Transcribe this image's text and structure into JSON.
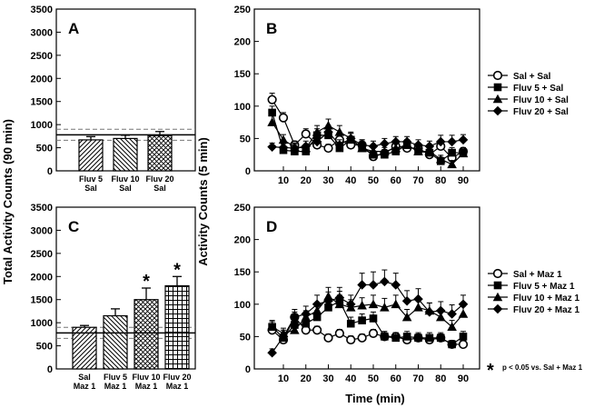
{
  "figure": {
    "left_ylabel": "Total Activity Counts (90 min)",
    "right_ylabel": "Activity Counts (5 min)",
    "xlabel": "Time (min)",
    "footnote_star": "*",
    "footnote": "p < 0.05 vs. Sal + Maz 1"
  },
  "chart_data": [
    {
      "panel": "A",
      "type": "bar",
      "ylim": [
        0,
        3500
      ],
      "yticks": [
        0,
        500,
        1000,
        1500,
        2000,
        2500,
        3000,
        3500
      ],
      "categories": [
        [
          "Fluv 5",
          "Sal"
        ],
        [
          "Fluv 10",
          "Sal"
        ],
        [
          "Fluv 20",
          "Sal"
        ]
      ],
      "values": [
        670,
        700,
        760
      ],
      "errors": [
        70,
        70,
        90
      ],
      "patterns": [
        "diag-up",
        "diag-down",
        "crosshatch"
      ],
      "significant": [
        false,
        false,
        false
      ],
      "reference": {
        "mean": 780,
        "upper": 900,
        "lower": 660
      }
    },
    {
      "panel": "C",
      "type": "bar",
      "ylim": [
        0,
        3500
      ],
      "yticks": [
        0,
        500,
        1000,
        1500,
        2000,
        2500,
        3000,
        3500
      ],
      "categories": [
        [
          "Sal",
          "Maz 1"
        ],
        [
          "Fluv 5",
          "Maz 1"
        ],
        [
          "Fluv 10",
          "Maz 1"
        ],
        [
          "Fluv 20",
          "Maz 1"
        ]
      ],
      "values": [
        900,
        1150,
        1500,
        1800
      ],
      "errors": [
        40,
        150,
        250,
        200
      ],
      "patterns": [
        "diag-up",
        "diag-down",
        "crosshatch",
        "grid"
      ],
      "significant": [
        false,
        false,
        true,
        true
      ],
      "reference": {
        "mean": 780,
        "upper": 900,
        "lower": 660
      }
    },
    {
      "panel": "B",
      "type": "line",
      "ylim": [
        0,
        250
      ],
      "yticks": [
        0,
        50,
        100,
        150,
        200,
        250
      ],
      "xticks": [
        10,
        20,
        30,
        40,
        50,
        60,
        70,
        80,
        90
      ],
      "x": [
        5,
        10,
        15,
        20,
        25,
        30,
        35,
        40,
        45,
        50,
        55,
        60,
        65,
        70,
        75,
        80,
        85,
        90
      ],
      "series": [
        {
          "name": "Sal + Sal",
          "marker": "circle-open",
          "values": [
            110,
            82,
            40,
            57,
            40,
            35,
            48,
            40,
            40,
            22,
            27,
            38,
            35,
            35,
            25,
            38,
            20,
            30
          ],
          "errors": [
            10,
            8,
            6,
            8,
            6,
            6,
            8,
            6,
            8,
            6,
            6,
            8,
            6,
            6,
            8,
            6,
            6,
            6
          ]
        },
        {
          "name": "Fluv 5 + Sal",
          "marker": "square",
          "values": [
            90,
            32,
            30,
            30,
            55,
            55,
            35,
            48,
            35,
            25,
            25,
            30,
            40,
            30,
            28,
            15,
            28,
            28
          ],
          "errors": [
            10,
            6,
            6,
            6,
            10,
            8,
            6,
            10,
            8,
            6,
            6,
            6,
            8,
            6,
            8,
            6,
            8,
            6
          ]
        },
        {
          "name": "Fluv 10 + Sal",
          "marker": "triangle",
          "values": [
            75,
            48,
            37,
            35,
            60,
            70,
            60,
            50,
            35,
            30,
            30,
            35,
            40,
            30,
            30,
            18,
            10,
            27
          ],
          "errors": [
            10,
            8,
            6,
            6,
            10,
            10,
            10,
            8,
            8,
            6,
            6,
            8,
            8,
            6,
            6,
            6,
            6,
            6
          ]
        },
        {
          "name": "Fluv 20 + Sal",
          "marker": "diamond",
          "values": [
            37,
            36,
            35,
            38,
            45,
            60,
            40,
            50,
            40,
            38,
            42,
            45,
            45,
            40,
            38,
            45,
            45,
            48
          ],
          "errors": [
            6,
            6,
            6,
            8,
            8,
            10,
            8,
            10,
            8,
            8,
            8,
            8,
            8,
            8,
            8,
            10,
            10,
            8
          ]
        }
      ]
    },
    {
      "panel": "D",
      "type": "line",
      "ylim": [
        0,
        250
      ],
      "yticks": [
        0,
        50,
        100,
        150,
        200,
        250
      ],
      "xticks": [
        10,
        20,
        30,
        40,
        50,
        60,
        70,
        80,
        90
      ],
      "x": [
        5,
        10,
        15,
        20,
        25,
        30,
        35,
        40,
        45,
        50,
        55,
        60,
        65,
        70,
        75,
        80,
        85,
        90
      ],
      "series": [
        {
          "name": "Sal + Maz 1",
          "marker": "circle-open",
          "values": [
            60,
            45,
            80,
            60,
            60,
            48,
            55,
            45,
            48,
            55,
            50,
            50,
            45,
            48,
            45,
            48,
            38,
            38
          ],
          "errors": [
            6,
            6,
            8,
            8,
            6,
            6,
            6,
            6,
            6,
            6,
            6,
            6,
            6,
            6,
            6,
            6,
            6,
            6
          ]
        },
        {
          "name": "Fluv 5 + Maz 1",
          "marker": "square",
          "values": [
            65,
            48,
            68,
            70,
            80,
            95,
            105,
            70,
            75,
            78,
            50,
            48,
            50,
            48,
            48,
            48,
            38,
            50
          ],
          "errors": [
            8,
            8,
            10,
            10,
            10,
            12,
            15,
            10,
            10,
            10,
            8,
            8,
            8,
            8,
            8,
            8,
            6,
            8
          ]
        },
        {
          "name": "Fluv 10 + Maz 1",
          "marker": "triangle",
          "values": [
            65,
            55,
            60,
            80,
            90,
            112,
            100,
            95,
            98,
            100,
            95,
            100,
            80,
            95,
            90,
            80,
            65,
            85
          ],
          "errors": [
            10,
            8,
            10,
            10,
            12,
            14,
            14,
            12,
            12,
            14,
            14,
            14,
            12,
            14,
            12,
            12,
            10,
            12
          ]
        },
        {
          "name": "Fluv 20 + Maz 1",
          "marker": "diamond",
          "values": [
            25,
            50,
            80,
            85,
            100,
            105,
            110,
            100,
            130,
            130,
            135,
            130,
            105,
            108,
            88,
            90,
            85,
            100
          ],
          "errors": [
            6,
            10,
            12,
            12,
            14,
            14,
            16,
            14,
            18,
            20,
            18,
            18,
            16,
            16,
            14,
            14,
            14,
            14
          ]
        }
      ]
    }
  ]
}
